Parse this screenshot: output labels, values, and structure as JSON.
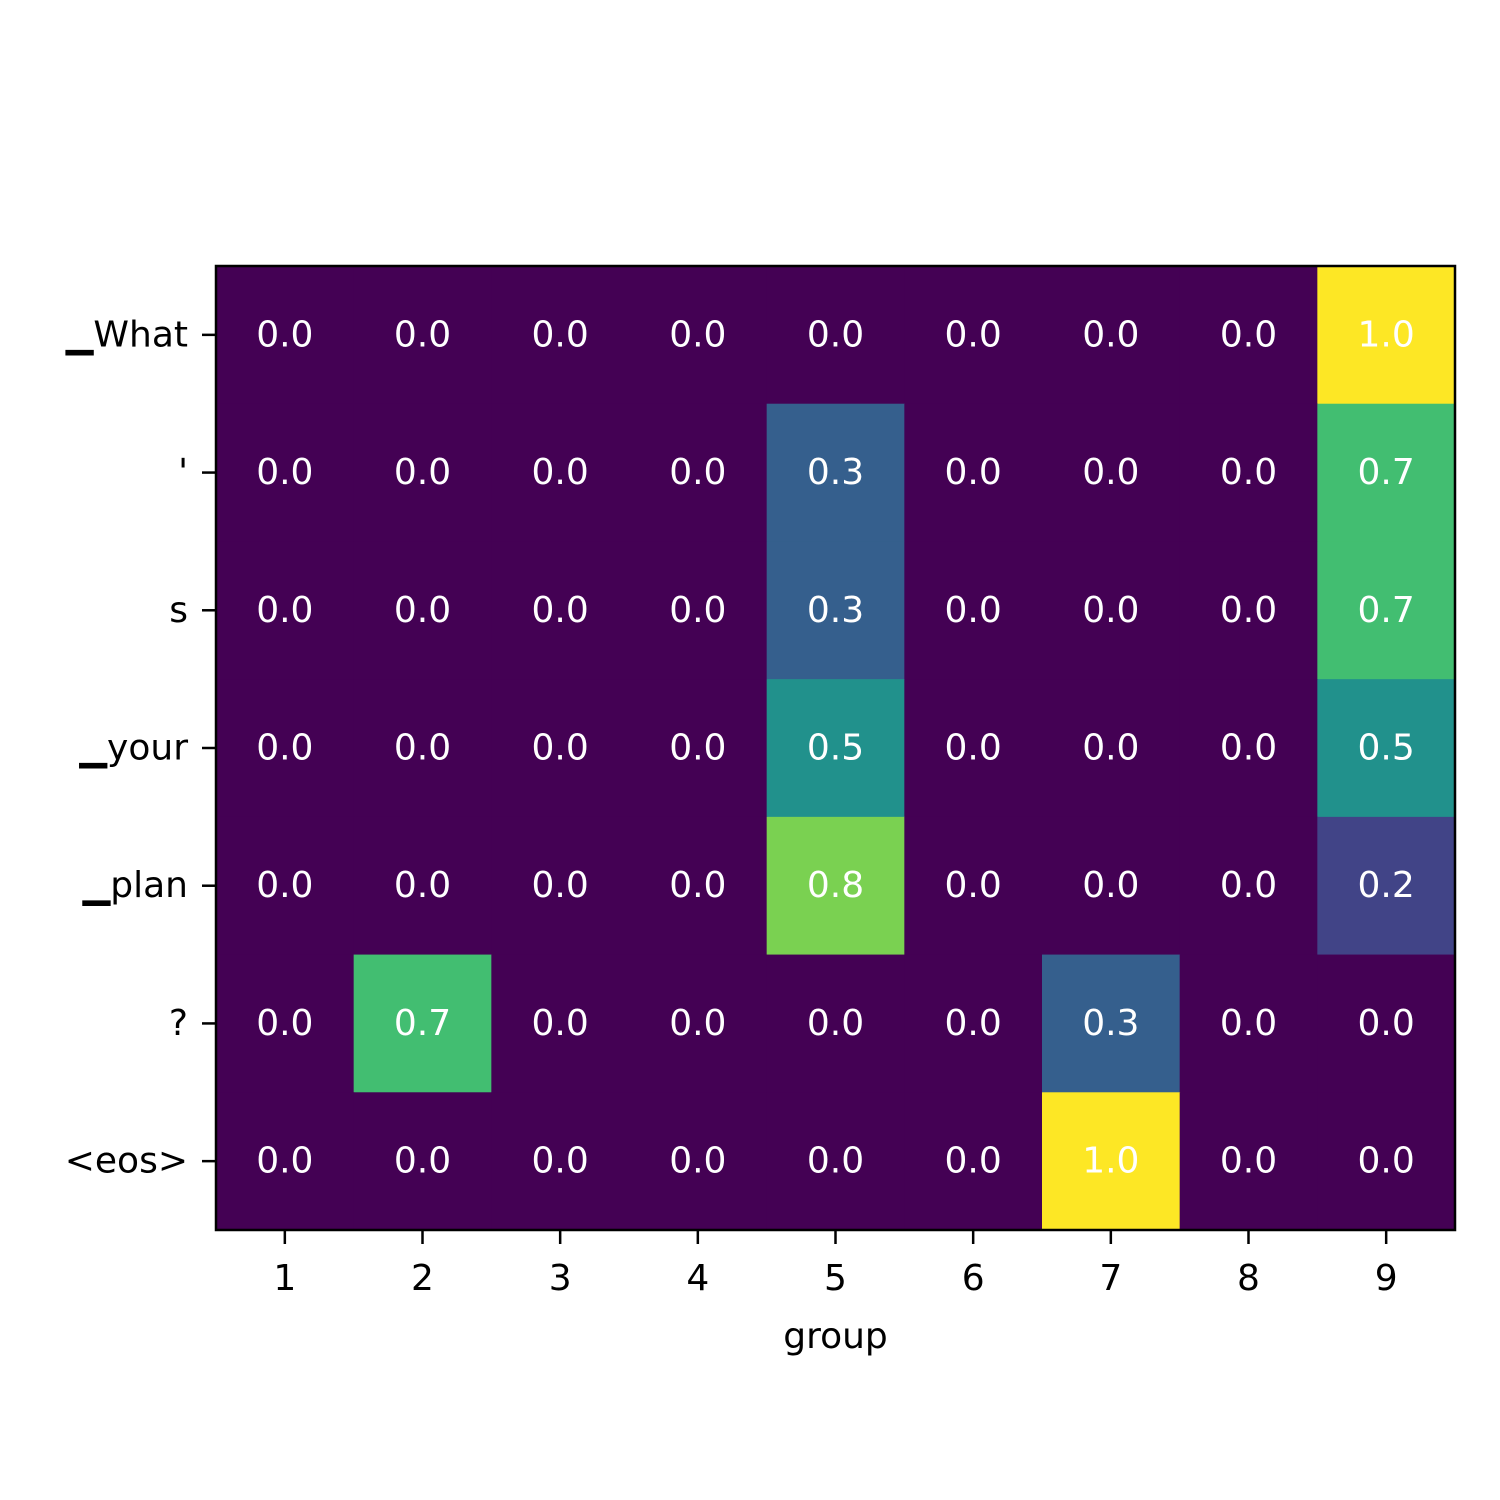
{
  "chart_data": {
    "type": "heatmap",
    "title": "",
    "xlabel": "group",
    "ylabel": "",
    "x": [
      "1",
      "2",
      "3",
      "4",
      "5",
      "6",
      "7",
      "8",
      "9"
    ],
    "y": [
      "▁What",
      "'",
      "s",
      "▁your",
      "▁plan",
      "?",
      "<eos>"
    ],
    "values": [
      [
        0.0,
        0.0,
        0.0,
        0.0,
        0.0,
        0.0,
        0.0,
        0.0,
        1.0
      ],
      [
        0.0,
        0.0,
        0.0,
        0.0,
        0.3,
        0.0,
        0.0,
        0.0,
        0.7
      ],
      [
        0.0,
        0.0,
        0.0,
        0.0,
        0.3,
        0.0,
        0.0,
        0.0,
        0.7
      ],
      [
        0.0,
        0.0,
        0.0,
        0.0,
        0.5,
        0.0,
        0.0,
        0.0,
        0.5
      ],
      [
        0.0,
        0.0,
        0.0,
        0.0,
        0.8,
        0.0,
        0.0,
        0.0,
        0.2
      ],
      [
        0.0,
        0.7,
        0.0,
        0.0,
        0.0,
        0.0,
        0.3,
        0.0,
        0.0
      ],
      [
        0.0,
        0.0,
        0.0,
        0.0,
        0.0,
        0.0,
        1.0,
        0.0,
        0.0
      ]
    ],
    "colormap": "viridis",
    "value_range": [
      0,
      1
    ],
    "cell_label_color": "#ffffff",
    "grid": false
  }
}
